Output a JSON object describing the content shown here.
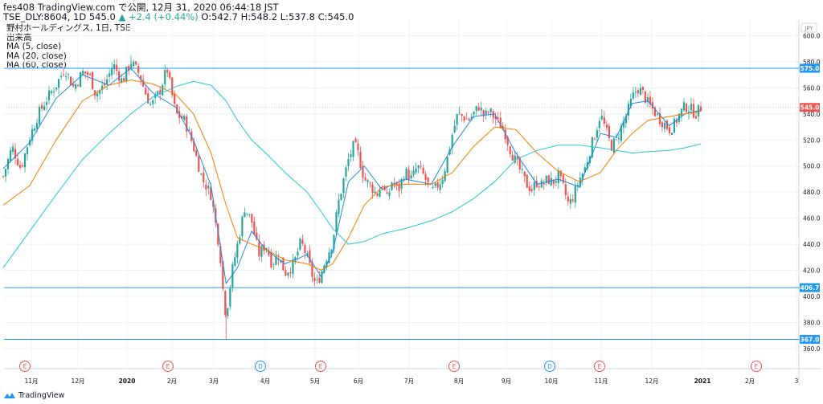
{
  "header": {
    "line1": "fes408 TradingView.com で公開, 12月 31, 2020 06:44:18 JST",
    "symbol": "TSE_DLY:8604, 1D",
    "last": "545.0",
    "change": "▲ +2.4 (+0.44%)",
    "ohlc": "O:542.7 H:548.2 L:537.8 C:545.0"
  },
  "legend": {
    "title": "野村ホールディングス, 1日, TSE",
    "volume": "出来高",
    "ma5": "MA (5, close)",
    "ma20": "MA (20, close)",
    "ma60": "MA (60, close)"
  },
  "footer": {
    "brand": "TradingView"
  },
  "colors": {
    "up": "#26a69a",
    "down": "#ef5350",
    "ma5": "#1e88e5",
    "ma20": "#f57c00",
    "ma60": "#26c6da",
    "hline": "#2196f3",
    "grid": "#eef0f3",
    "price_tag": "#ef5350"
  },
  "chart_data": {
    "type": "candlestick",
    "currency": "JPY",
    "ylim": [
      355,
      612
    ],
    "y_ticks": [
      360,
      380,
      400,
      420,
      440,
      460,
      480,
      500,
      520,
      540,
      560,
      580,
      600
    ],
    "x_labels": [
      "11月",
      "12月",
      "2020",
      "2月",
      "3月",
      "4月",
      "5月",
      "6月",
      "7月",
      "8月",
      "9月",
      "10月",
      "11月",
      "12月",
      "2021",
      "2月",
      "3"
    ],
    "price_tags": [
      {
        "value": 575.0,
        "label": "575.0",
        "kind": "hline"
      },
      {
        "value": 545.0,
        "label": "545.0",
        "kind": "last"
      },
      {
        "value": 406.7,
        "label": "406.7",
        "kind": "hline"
      },
      {
        "value": 367.0,
        "label": "367.0",
        "kind": "hline"
      }
    ],
    "horizontal_lines": [
      575.0,
      406.7,
      367.0
    ],
    "events": [
      {
        "at": "10月",
        "label": "E",
        "kind": "earnings"
      },
      {
        "at": "1月下旬",
        "label": "E",
        "kind": "earnings"
      },
      {
        "at": "3月末",
        "label": "D",
        "kind": "dividend"
      },
      {
        "at": "5月初",
        "label": "E",
        "kind": "earnings"
      },
      {
        "at": "7月末",
        "label": "E",
        "kind": "earnings"
      },
      {
        "at": "9月末",
        "label": "D",
        "kind": "dividend"
      },
      {
        "at": "10月末",
        "label": "E",
        "kind": "earnings"
      },
      {
        "at": "2月",
        "label": "E",
        "kind": "earnings"
      }
    ],
    "close_path": [
      [
        0,
        492
      ],
      [
        10,
        515
      ],
      [
        20,
        498
      ],
      [
        30,
        522
      ],
      [
        40,
        540
      ],
      [
        50,
        552
      ],
      [
        60,
        562
      ],
      [
        70,
        575
      ],
      [
        80,
        560
      ],
      [
        90,
        572
      ],
      [
        98,
        570
      ],
      [
        105,
        555
      ],
      [
        115,
        562
      ],
      [
        125,
        578
      ],
      [
        135,
        565
      ],
      [
        145,
        580
      ],
      [
        155,
        570
      ],
      [
        162,
        555
      ],
      [
        168,
        546
      ],
      [
        178,
        558
      ],
      [
        186,
        575
      ],
      [
        190,
        560
      ],
      [
        196,
        540
      ],
      [
        206,
        535
      ],
      [
        216,
        515
      ],
      [
        226,
        490
      ],
      [
        236,
        478
      ],
      [
        246,
        435
      ],
      [
        250,
        400
      ],
      [
        253,
        385
      ],
      [
        260,
        420
      ],
      [
        266,
        440
      ],
      [
        274,
        468
      ],
      [
        282,
        458
      ],
      [
        290,
        432
      ],
      [
        298,
        440
      ],
      [
        305,
        425
      ],
      [
        312,
        432
      ],
      [
        320,
        418
      ],
      [
        330,
        425
      ],
      [
        338,
        442
      ],
      [
        345,
        430
      ],
      [
        350,
        418
      ],
      [
        355,
        408
      ],
      [
        361,
        418
      ],
      [
        368,
        432
      ],
      [
        374,
        442
      ],
      [
        380,
        470
      ],
      [
        386,
        488
      ],
      [
        392,
        505
      ],
      [
        398,
        516
      ],
      [
        402,
        512
      ],
      [
        410,
        490
      ],
      [
        418,
        484
      ],
      [
        424,
        478
      ],
      [
        430,
        486
      ],
      [
        436,
        474
      ],
      [
        442,
        490
      ],
      [
        448,
        480
      ],
      [
        456,
        496
      ],
      [
        464,
        490
      ],
      [
        470,
        500
      ],
      [
        478,
        492
      ],
      [
        486,
        480
      ],
      [
        492,
        484
      ],
      [
        498,
        490
      ],
      [
        504,
        505
      ],
      [
        510,
        525
      ],
      [
        516,
        540
      ],
      [
        522,
        538
      ],
      [
        528,
        535
      ],
      [
        534,
        540
      ],
      [
        540,
        546
      ],
      [
        546,
        538
      ],
      [
        552,
        542
      ],
      [
        558,
        537
      ],
      [
        564,
        532
      ],
      [
        570,
        525
      ],
      [
        576,
        512
      ],
      [
        582,
        503
      ],
      [
        588,
        495
      ],
      [
        594,
        486
      ],
      [
        600,
        482
      ],
      [
        606,
        488
      ],
      [
        612,
        485
      ],
      [
        618,
        490
      ],
      [
        624,
        487
      ],
      [
        630,
        493
      ],
      [
        636,
        483
      ],
      [
        642,
        470
      ],
      [
        648,
        478
      ],
      [
        654,
        490
      ],
      [
        660,
        497
      ],
      [
        666,
        512
      ],
      [
        672,
        525
      ],
      [
        678,
        540
      ],
      [
        684,
        528
      ],
      [
        690,
        515
      ],
      [
        696,
        520
      ],
      [
        702,
        530
      ],
      [
        708,
        540
      ],
      [
        714,
        552
      ],
      [
        720,
        560
      ],
      [
        726,
        556
      ],
      [
        732,
        548
      ],
      [
        738,
        543
      ],
      [
        744,
        537
      ],
      [
        750,
        533
      ],
      [
        756,
        528
      ],
      [
        762,
        532
      ],
      [
        768,
        540
      ],
      [
        774,
        546
      ],
      [
        780,
        544
      ],
      [
        786,
        540
      ],
      [
        792,
        545
      ]
    ],
    "series": [
      {
        "name": "MA (5, close)",
        "values": [
          [
            0,
            498
          ],
          [
            30,
            518
          ],
          [
            60,
            552
          ],
          [
            90,
            570
          ],
          [
            120,
            562
          ],
          [
            145,
            575
          ],
          [
            170,
            556
          ],
          [
            196,
            545
          ],
          [
            216,
            520
          ],
          [
            236,
            485
          ],
          [
            253,
            410
          ],
          [
            266,
            422
          ],
          [
            282,
            450
          ],
          [
            298,
            436
          ],
          [
            320,
            425
          ],
          [
            345,
            432
          ],
          [
            361,
            415
          ],
          [
            374,
            434
          ],
          [
            392,
            488
          ],
          [
            410,
            500
          ],
          [
            430,
            482
          ],
          [
            456,
            490
          ],
          [
            486,
            486
          ],
          [
            510,
            515
          ],
          [
            534,
            538
          ],
          [
            558,
            540
          ],
          [
            582,
            510
          ],
          [
            606,
            486
          ],
          [
            630,
            490
          ],
          [
            654,
            484
          ],
          [
            678,
            525
          ],
          [
            696,
            522
          ],
          [
            714,
            548
          ],
          [
            732,
            550
          ],
          [
            756,
            531
          ],
          [
            774,
            540
          ],
          [
            792,
            543
          ]
        ]
      },
      {
        "name": "MA (20, close)",
        "values": [
          [
            0,
            470
          ],
          [
            30,
            485
          ],
          [
            60,
            520
          ],
          [
            90,
            550
          ],
          [
            120,
            562
          ],
          [
            145,
            566
          ],
          [
            170,
            563
          ],
          [
            196,
            555
          ],
          [
            216,
            540
          ],
          [
            236,
            510
          ],
          [
            253,
            470
          ],
          [
            266,
            445
          ],
          [
            282,
            440
          ],
          [
            298,
            436
          ],
          [
            320,
            428
          ],
          [
            345,
            425
          ],
          [
            361,
            420
          ],
          [
            374,
            425
          ],
          [
            392,
            445
          ],
          [
            410,
            470
          ],
          [
            430,
            484
          ],
          [
            456,
            486
          ],
          [
            486,
            486
          ],
          [
            510,
            495
          ],
          [
            534,
            515
          ],
          [
            558,
            530
          ],
          [
            582,
            528
          ],
          [
            606,
            510
          ],
          [
            630,
            496
          ],
          [
            654,
            488
          ],
          [
            678,
            495
          ],
          [
            696,
            512
          ],
          [
            714,
            525
          ],
          [
            732,
            535
          ],
          [
            756,
            538
          ],
          [
            774,
            540
          ],
          [
            792,
            542
          ]
        ]
      },
      {
        "name": "MA (60, close)",
        "values": [
          [
            0,
            422
          ],
          [
            30,
            450
          ],
          [
            60,
            478
          ],
          [
            90,
            505
          ],
          [
            120,
            525
          ],
          [
            145,
            540
          ],
          [
            170,
            553
          ],
          [
            196,
            561
          ],
          [
            216,
            565
          ],
          [
            236,
            562
          ],
          [
            253,
            550
          ],
          [
            266,
            535
          ],
          [
            282,
            520
          ],
          [
            298,
            510
          ],
          [
            320,
            495
          ],
          [
            345,
            480
          ],
          [
            361,
            465
          ],
          [
            374,
            452
          ],
          [
            392,
            440
          ],
          [
            410,
            442
          ],
          [
            430,
            448
          ],
          [
            456,
            452
          ],
          [
            486,
            458
          ],
          [
            510,
            465
          ],
          [
            534,
            475
          ],
          [
            558,
            488
          ],
          [
            582,
            505
          ],
          [
            606,
            512
          ],
          [
            630,
            516
          ],
          [
            654,
            516
          ],
          [
            678,
            514
          ],
          [
            696,
            512
          ],
          [
            714,
            510
          ],
          [
            732,
            511
          ],
          [
            756,
            512
          ],
          [
            774,
            514
          ],
          [
            792,
            517
          ]
        ]
      }
    ]
  }
}
